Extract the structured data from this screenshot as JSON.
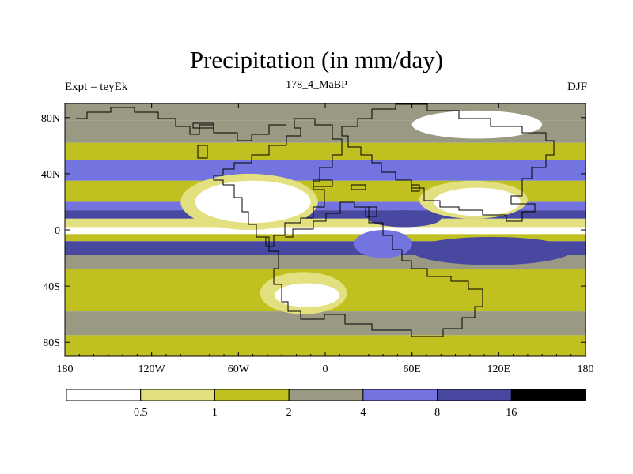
{
  "header": {
    "title": "Precipitation (in mm/day)",
    "left_label": "Expt = teyEk",
    "center_label": "178_4_MaBP",
    "right_label": "DJF"
  },
  "chart_data": {
    "type": "heatmap",
    "title": "Precipitation (in mm/day)",
    "x_ticks": [
      {
        "value": -180,
        "label": "180"
      },
      {
        "value": -120,
        "label": "120W"
      },
      {
        "value": -60,
        "label": "60W"
      },
      {
        "value": 0,
        "label": "0"
      },
      {
        "value": 60,
        "label": "60E"
      },
      {
        "value": 120,
        "label": "120E"
      },
      {
        "value": 180,
        "label": "180"
      }
    ],
    "y_ticks": [
      {
        "value": 80,
        "label": "80N"
      },
      {
        "value": 40,
        "label": "40N"
      },
      {
        "value": 0,
        "label": "0"
      },
      {
        "value": -40,
        "label": "40S"
      },
      {
        "value": -80,
        "label": "80S"
      }
    ],
    "xlim": [
      -180,
      180
    ],
    "ylim": [
      -90,
      90
    ],
    "colorbar": {
      "levels": [
        "0.5",
        "1",
        "2",
        "4",
        "8",
        "16"
      ],
      "colors": [
        "#ffffff",
        "#e2e07f",
        "#c0c020",
        "#9a9a84",
        "#7474e0",
        "#4848a0",
        "#000000"
      ]
    },
    "latitude_bands": [
      {
        "lat": [
          78,
          90
        ],
        "value": 2
      },
      {
        "lat": [
          62,
          78
        ],
        "value": 3
      },
      {
        "lat": [
          50,
          62
        ],
        "value": 1.5
      },
      {
        "lat": [
          35,
          50
        ],
        "value": 6
      },
      {
        "lat": [
          20,
          35
        ],
        "value": 1.5
      },
      {
        "lat": [
          14,
          20
        ],
        "value": 5
      },
      {
        "lat": [
          8,
          14
        ],
        "value": 10
      },
      {
        "lat": [
          2,
          8
        ],
        "value": 0.8
      },
      {
        "lat": [
          -3,
          2
        ],
        "value": 0.3
      },
      {
        "lat": [
          -8,
          -3
        ],
        "value": 1.5
      },
      {
        "lat": [
          -18,
          -8
        ],
        "value": 10
      },
      {
        "lat": [
          -28,
          -18
        ],
        "value": 3
      },
      {
        "lat": [
          -45,
          -28
        ],
        "value": 1.5
      },
      {
        "lat": [
          -58,
          -45
        ],
        "value": 1.5
      },
      {
        "lat": [
          -75,
          -58
        ],
        "value": 3
      },
      {
        "lat": [
          -90,
          -75
        ],
        "value": 1.5
      }
    ],
    "regions": [
      {
        "name": "west-continent-dry",
        "value": 0.3,
        "lon": [
          -90,
          -10
        ],
        "lat": [
          5,
          35
        ]
      },
      {
        "name": "west-continent-margin",
        "value": 0.8,
        "lon": [
          -100,
          -5
        ],
        "lat": [
          0,
          40
        ]
      },
      {
        "name": "south-continent-dry",
        "value": 0.3,
        "lon": [
          -35,
          10
        ],
        "lat": [
          -55,
          -38
        ]
      },
      {
        "name": "south-continent-margin",
        "value": 0.8,
        "lon": [
          -45,
          15
        ],
        "lat": [
          -60,
          -30
        ]
      },
      {
        "name": "east-continent-dry",
        "value": 0.3,
        "lon": [
          75,
          135
        ],
        "lat": [
          10,
          30
        ]
      },
      {
        "name": "east-continent-margin",
        "value": 0.8,
        "lon": [
          65,
          140
        ],
        "lat": [
          8,
          35
        ]
      },
      {
        "name": "north-dry",
        "value": 0.3,
        "lon": [
          60,
          150
        ],
        "lat": [
          65,
          85
        ]
      },
      {
        "name": "tethys-wet",
        "value": 10,
        "lon": [
          30,
          80
        ],
        "lat": [
          2,
          14
        ]
      },
      {
        "name": "southern-tropics-wet",
        "value": 10,
        "lon": [
          60,
          170
        ],
        "lat": [
          -25,
          -5
        ]
      },
      {
        "name": "east-subtropics-mid",
        "value": 5,
        "lon": [
          20,
          60
        ],
        "lat": [
          -20,
          0
        ]
      }
    ]
  }
}
